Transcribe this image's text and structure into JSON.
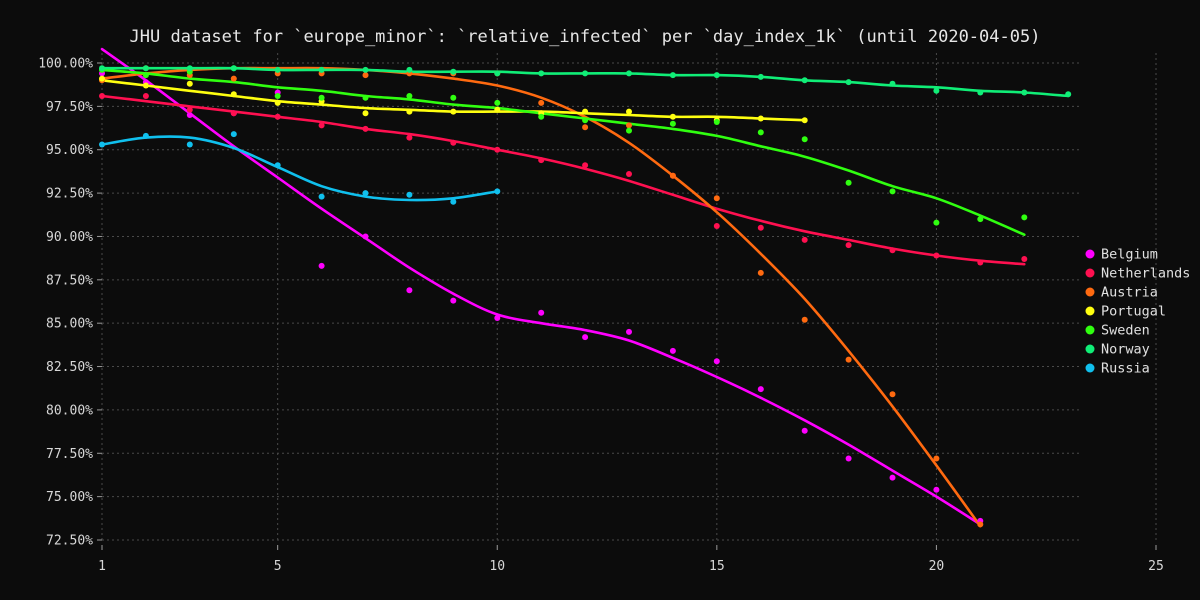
{
  "chart_data": {
    "type": "scatter",
    "title": "JHU dataset for `europe_minor`: `relative_infected` per `day_index_1k` (until 2020-04-05)",
    "xlabel": "",
    "ylabel": "",
    "xlim": [
      1,
      25
    ],
    "ylim": [
      72.5,
      100
    ],
    "x_ticks": [
      1,
      5,
      10,
      15,
      20,
      25
    ],
    "y_ticks": [
      72.5,
      75,
      77.5,
      80,
      82.5,
      85,
      87.5,
      90,
      92.5,
      95,
      97.5,
      100
    ],
    "y_tick_labels": [
      "72.50%",
      "75.00%",
      "77.50%",
      "80.00%",
      "82.50%",
      "85.00%",
      "87.50%",
      "90.00%",
      "92.50%",
      "95.00%",
      "97.50%",
      "100.00%"
    ],
    "grid": true,
    "legend_position": "right",
    "series": [
      {
        "name": "Belgium",
        "color": "#ff00ff",
        "points": [
          [
            1,
            99.4
          ],
          [
            2,
            98.9
          ],
          [
            3,
            97.0
          ],
          [
            4,
            97.1
          ],
          [
            5,
            98.3
          ],
          [
            6,
            88.3
          ],
          [
            7,
            90.0
          ],
          [
            8,
            86.9
          ],
          [
            9,
            86.3
          ],
          [
            10,
            85.3
          ],
          [
            11,
            85.6
          ],
          [
            12,
            84.2
          ],
          [
            13,
            84.5
          ],
          [
            14,
            83.4
          ],
          [
            15,
            82.8
          ],
          [
            16,
            81.2
          ],
          [
            17,
            78.8
          ],
          [
            18,
            77.2
          ],
          [
            19,
            76.1
          ],
          [
            20,
            75.4
          ],
          [
            21,
            73.6
          ]
        ],
        "fit": [
          [
            1,
            100.8
          ],
          [
            2,
            99.0
          ],
          [
            3,
            97.1
          ],
          [
            4,
            95.2
          ],
          [
            5,
            93.4
          ],
          [
            6,
            91.6
          ],
          [
            7,
            89.9
          ],
          [
            8,
            88.2
          ],
          [
            9,
            86.7
          ],
          [
            10,
            85.5
          ],
          [
            11,
            85.0
          ],
          [
            12,
            84.6
          ],
          [
            13,
            84.0
          ],
          [
            14,
            83.0
          ],
          [
            15,
            81.9
          ],
          [
            16,
            80.7
          ],
          [
            17,
            79.4
          ],
          [
            18,
            78.0
          ],
          [
            19,
            76.5
          ],
          [
            20,
            75.0
          ],
          [
            21,
            73.4
          ]
        ]
      },
      {
        "name": "Netherlands",
        "color": "#ff1050",
        "points": [
          [
            1,
            98.1
          ],
          [
            2,
            98.1
          ],
          [
            3,
            97.3
          ],
          [
            4,
            97.1
          ],
          [
            5,
            96.9
          ],
          [
            6,
            96.4
          ],
          [
            7,
            96.2
          ],
          [
            8,
            95.7
          ],
          [
            9,
            95.4
          ],
          [
            10,
            95.0
          ],
          [
            11,
            94.4
          ],
          [
            12,
            94.1
          ],
          [
            13,
            93.6
          ],
          [
            14,
            93.5
          ],
          [
            15,
            90.6
          ],
          [
            16,
            90.5
          ],
          [
            17,
            89.8
          ],
          [
            18,
            89.5
          ],
          [
            19,
            89.2
          ],
          [
            20,
            88.9
          ],
          [
            21,
            88.5
          ],
          [
            22,
            88.7
          ]
        ],
        "fit": [
          [
            1,
            98.1
          ],
          [
            2,
            97.8
          ],
          [
            3,
            97.5
          ],
          [
            4,
            97.2
          ],
          [
            5,
            96.9
          ],
          [
            6,
            96.6
          ],
          [
            7,
            96.2
          ],
          [
            8,
            95.9
          ],
          [
            9,
            95.5
          ],
          [
            10,
            95.0
          ],
          [
            11,
            94.5
          ],
          [
            12,
            93.9
          ],
          [
            13,
            93.2
          ],
          [
            14,
            92.4
          ],
          [
            15,
            91.6
          ],
          [
            16,
            90.9
          ],
          [
            17,
            90.3
          ],
          [
            18,
            89.8
          ],
          [
            19,
            89.3
          ],
          [
            20,
            88.9
          ],
          [
            21,
            88.6
          ],
          [
            22,
            88.4
          ]
        ]
      },
      {
        "name": "Austria",
        "color": "#ff6a10",
        "points": [
          [
            1,
            99.0
          ],
          [
            2,
            99.7
          ],
          [
            3,
            99.3
          ],
          [
            4,
            99.1
          ],
          [
            5,
            99.4
          ],
          [
            6,
            99.4
          ],
          [
            7,
            99.3
          ],
          [
            8,
            99.4
          ],
          [
            9,
            99.4
          ],
          [
            10,
            99.4
          ],
          [
            11,
            97.7
          ],
          [
            12,
            96.3
          ],
          [
            13,
            96.4
          ],
          [
            14,
            93.5
          ],
          [
            15,
            92.2
          ],
          [
            16,
            87.9
          ],
          [
            17,
            85.2
          ],
          [
            18,
            82.9
          ],
          [
            19,
            80.9
          ],
          [
            20,
            77.2
          ],
          [
            21,
            73.4
          ]
        ],
        "fit": [
          [
            1,
            99.1
          ],
          [
            2,
            99.4
          ],
          [
            3,
            99.6
          ],
          [
            4,
            99.7
          ],
          [
            5,
            99.7
          ],
          [
            6,
            99.7
          ],
          [
            7,
            99.6
          ],
          [
            8,
            99.4
          ],
          [
            9,
            99.1
          ],
          [
            10,
            98.7
          ],
          [
            11,
            98.0
          ],
          [
            12,
            96.9
          ],
          [
            13,
            95.4
          ],
          [
            14,
            93.5
          ],
          [
            15,
            91.4
          ],
          [
            16,
            89.0
          ],
          [
            17,
            86.4
          ],
          [
            18,
            83.4
          ],
          [
            19,
            80.2
          ],
          [
            20,
            76.8
          ],
          [
            21,
            73.3
          ]
        ]
      },
      {
        "name": "Portugal",
        "color": "#ffff10",
        "points": [
          [
            1,
            99.1
          ],
          [
            2,
            98.7
          ],
          [
            3,
            98.8
          ],
          [
            4,
            98.2
          ],
          [
            5,
            97.7
          ],
          [
            6,
            97.8
          ],
          [
            7,
            97.1
          ],
          [
            8,
            97.2
          ],
          [
            9,
            97.2
          ],
          [
            10,
            97.3
          ],
          [
            11,
            97.1
          ],
          [
            12,
            97.2
          ],
          [
            13,
            97.2
          ],
          [
            14,
            96.9
          ],
          [
            15,
            96.7
          ],
          [
            16,
            96.8
          ],
          [
            17,
            96.7
          ]
        ],
        "fit": [
          [
            1,
            99.0
          ],
          [
            2,
            98.7
          ],
          [
            3,
            98.4
          ],
          [
            4,
            98.1
          ],
          [
            5,
            97.8
          ],
          [
            6,
            97.6
          ],
          [
            7,
            97.4
          ],
          [
            8,
            97.3
          ],
          [
            9,
            97.2
          ],
          [
            10,
            97.2
          ],
          [
            11,
            97.2
          ],
          [
            12,
            97.1
          ],
          [
            13,
            97.0
          ],
          [
            14,
            96.9
          ],
          [
            15,
            96.9
          ],
          [
            16,
            96.8
          ],
          [
            17,
            96.7
          ]
        ]
      },
      {
        "name": "Sweden",
        "color": "#30ff10",
        "points": [
          [
            1,
            99.6
          ],
          [
            2,
            99.3
          ],
          [
            3,
            99.5
          ],
          [
            4,
            99.7
          ],
          [
            5,
            98.1
          ],
          [
            6,
            98.0
          ],
          [
            7,
            98.0
          ],
          [
            8,
            98.1
          ],
          [
            9,
            98.0
          ],
          [
            10,
            97.7
          ],
          [
            11,
            96.9
          ],
          [
            12,
            96.7
          ],
          [
            13,
            96.1
          ],
          [
            14,
            96.5
          ],
          [
            15,
            96.6
          ],
          [
            16,
            96.0
          ],
          [
            17,
            95.6
          ],
          [
            18,
            93.1
          ],
          [
            19,
            92.6
          ],
          [
            20,
            90.8
          ],
          [
            21,
            91.0
          ],
          [
            22,
            91.1
          ]
        ],
        "fit": [
          [
            1,
            99.6
          ],
          [
            2,
            99.4
          ],
          [
            3,
            99.1
          ],
          [
            4,
            98.9
          ],
          [
            5,
            98.6
          ],
          [
            6,
            98.4
          ],
          [
            7,
            98.1
          ],
          [
            8,
            97.9
          ],
          [
            9,
            97.6
          ],
          [
            10,
            97.4
          ],
          [
            11,
            97.1
          ],
          [
            12,
            96.8
          ],
          [
            13,
            96.5
          ],
          [
            14,
            96.2
          ],
          [
            15,
            95.8
          ],
          [
            16,
            95.2
          ],
          [
            17,
            94.6
          ],
          [
            18,
            93.8
          ],
          [
            19,
            92.9
          ],
          [
            20,
            92.2
          ],
          [
            21,
            91.2
          ],
          [
            22,
            90.1
          ]
        ]
      },
      {
        "name": "Norway",
        "color": "#10ee77",
        "points": [
          [
            1,
            99.7
          ],
          [
            2,
            99.7
          ],
          [
            3,
            99.7
          ],
          [
            4,
            99.7
          ],
          [
            5,
            99.6
          ],
          [
            6,
            99.6
          ],
          [
            7,
            99.6
          ],
          [
            8,
            99.6
          ],
          [
            9,
            99.5
          ],
          [
            10,
            99.4
          ],
          [
            11,
            99.4
          ],
          [
            12,
            99.4
          ],
          [
            13,
            99.4
          ],
          [
            14,
            99.3
          ],
          [
            15,
            99.3
          ],
          [
            16,
            99.2
          ],
          [
            17,
            99.0
          ],
          [
            18,
            98.9
          ],
          [
            19,
            98.8
          ],
          [
            20,
            98.4
          ],
          [
            21,
            98.3
          ],
          [
            22,
            98.3
          ],
          [
            23,
            98.2
          ]
        ],
        "fit": [
          [
            1,
            99.7
          ],
          [
            2,
            99.7
          ],
          [
            3,
            99.7
          ],
          [
            4,
            99.7
          ],
          [
            5,
            99.6
          ],
          [
            6,
            99.6
          ],
          [
            7,
            99.6
          ],
          [
            8,
            99.5
          ],
          [
            9,
            99.5
          ],
          [
            10,
            99.5
          ],
          [
            11,
            99.4
          ],
          [
            12,
            99.4
          ],
          [
            13,
            99.4
          ],
          [
            14,
            99.3
          ],
          [
            15,
            99.3
          ],
          [
            16,
            99.2
          ],
          [
            17,
            99.0
          ],
          [
            18,
            98.9
          ],
          [
            19,
            98.7
          ],
          [
            20,
            98.6
          ],
          [
            21,
            98.4
          ],
          [
            22,
            98.3
          ],
          [
            23,
            98.1
          ]
        ]
      },
      {
        "name": "Russia",
        "color": "#10c0ee",
        "points": [
          [
            1,
            95.3
          ],
          [
            2,
            95.8
          ],
          [
            3,
            95.3
          ],
          [
            4,
            95.9
          ],
          [
            5,
            94.1
          ],
          [
            6,
            92.3
          ],
          [
            7,
            92.5
          ],
          [
            8,
            92.4
          ],
          [
            9,
            92.0
          ],
          [
            10,
            92.6
          ]
        ],
        "fit": [
          [
            1,
            95.3
          ],
          [
            2,
            95.7
          ],
          [
            3,
            95.7
          ],
          [
            4,
            95.1
          ],
          [
            5,
            94.0
          ],
          [
            6,
            92.9
          ],
          [
            7,
            92.3
          ],
          [
            8,
            92.1
          ],
          [
            9,
            92.2
          ],
          [
            10,
            92.6
          ]
        ]
      }
    ]
  }
}
